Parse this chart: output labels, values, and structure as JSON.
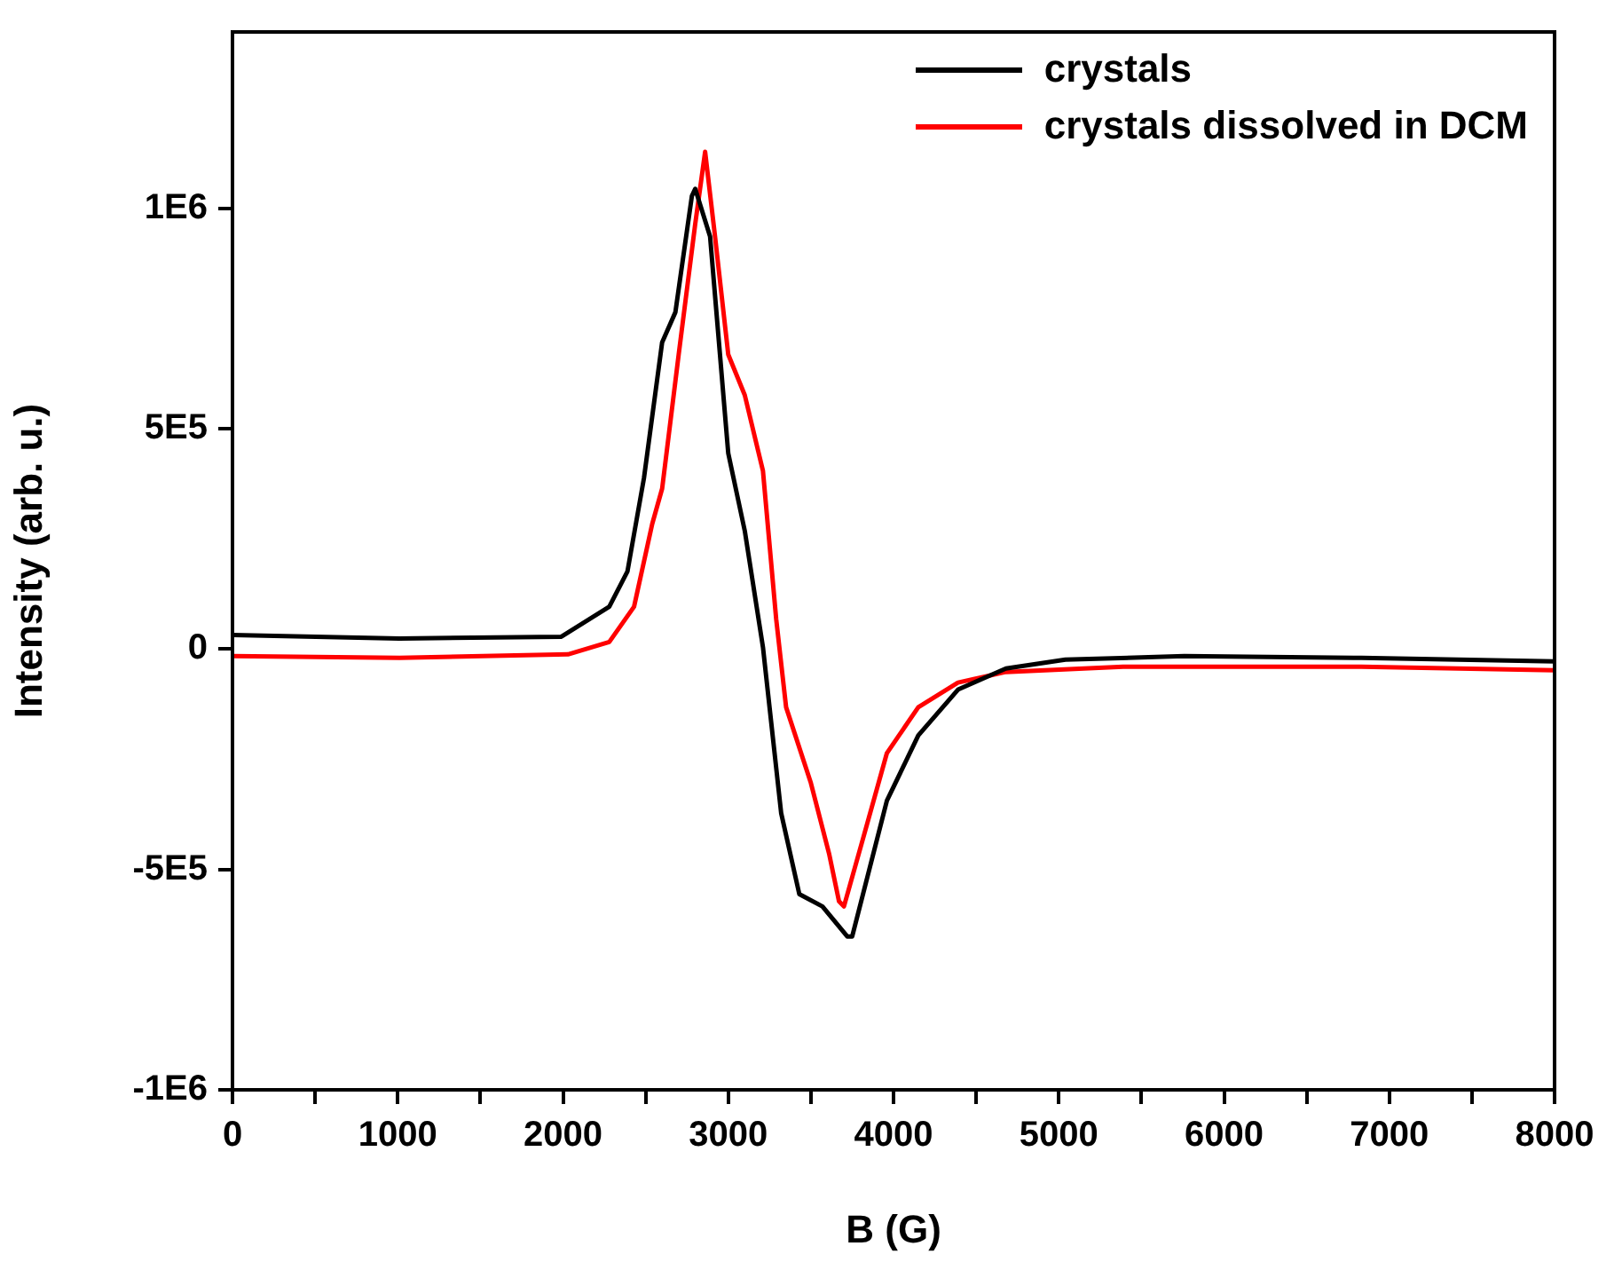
{
  "chart_data": {
    "type": "line",
    "xlabel": "B (G)",
    "ylabel": "Intensity (arb. u.)",
    "xlim": [
      0,
      8000
    ],
    "ylim": [
      -1000000,
      1400000
    ],
    "xticks": [
      0,
      {
        "value": 500,
        "label": null
      },
      1000,
      {
        "value": 1500,
        "label": null
      },
      2000,
      {
        "value": 2500,
        "label": null
      },
      3000,
      {
        "value": 3500,
        "label": null
      },
      4000,
      {
        "value": 4500,
        "label": null
      },
      5000,
      {
        "value": 5500,
        "label": null
      },
      6000,
      {
        "value": 6500,
        "label": null
      },
      7000,
      {
        "value": 7500,
        "label": null
      },
      8000
    ],
    "yticks": [
      {
        "value": -1000000,
        "label": "-1E6"
      },
      {
        "value": -500000,
        "label": "-5E5"
      },
      0,
      {
        "value": 500000,
        "label": "5E5"
      },
      {
        "value": 1000000,
        "label": "1E6"
      }
    ],
    "grid": false,
    "legend": "top right",
    "marker": "none",
    "line_style": "solid",
    "series": [
      {
        "name": "crystals",
        "color": "#000000",
        "x": [
          0,
          1010,
          1990,
          2280,
          2390,
          2490,
          2600,
          2680,
          2780,
          2800,
          2890,
          3000,
          3100,
          3210,
          3320,
          3430,
          3570,
          3720,
          3750,
          3960,
          4150,
          4390,
          4680,
          5040,
          5760,
          6830,
          8000
        ],
        "values": [
          32000,
          24000,
          28000,
          96000,
          176000,
          388000,
          696000,
          764000,
          1028000,
          1044000,
          936000,
          444000,
          268000,
          4000,
          -372000,
          -556000,
          -584000,
          -652000,
          -652000,
          -344000,
          -196000,
          -92000,
          -44000,
          -24000,
          -16000,
          -20000,
          -28000
        ]
      },
      {
        "name": "crystals dissolved in DCM",
        "color": "#ff0000",
        "x": [
          0,
          1010,
          2030,
          2280,
          2430,
          2540,
          2600,
          2700,
          2800,
          2860,
          2920,
          3000,
          3100,
          3210,
          3290,
          3350,
          3500,
          3610,
          3670,
          3700,
          3820,
          3960,
          4150,
          4390,
          4680,
          5390,
          6830,
          8000
        ],
        "values": [
          -16000,
          -20000,
          -12000,
          16000,
          96000,
          284000,
          364000,
          668000,
          964000,
          1128000,
          936000,
          668000,
          576000,
          404000,
          68000,
          -132000,
          -304000,
          -464000,
          -572000,
          -584000,
          -424000,
          -236000,
          -132000,
          -76000,
          -52000,
          -40000,
          -40000,
          -48000
        ]
      }
    ]
  }
}
